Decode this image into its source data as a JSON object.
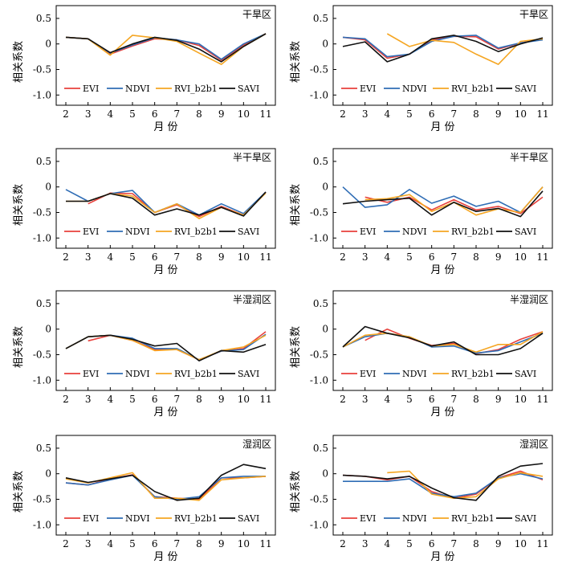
{
  "figure": {
    "legend_entries": [
      "EVI",
      "NDVI",
      "RVI_b2b1",
      "SAVI"
    ],
    "colors": {
      "EVI": "#e8413c",
      "NDVI": "#2f6db5",
      "RVI_b2b1": "#f5a623",
      "SAVI": "#111111"
    }
  },
  "chart_data": [
    {
      "type": "line",
      "title": "干旱区",
      "xlabel": "月 份",
      "ylabel": "相关系数",
      "x": [
        2,
        3,
        4,
        5,
        6,
        7,
        8,
        9,
        10,
        11
      ],
      "xticks": [
        2,
        3,
        4,
        5,
        6,
        7,
        8,
        9,
        10,
        11
      ],
      "yticks": [
        0.5,
        0,
        -0.5,
        -1.0
      ],
      "ytick_labels": [
        "0.5",
        "0",
        "-0.5",
        "-1.0"
      ],
      "ylim": [
        -1.2,
        0.75
      ],
      "legend": "bottom",
      "series": [
        {
          "name": "EVI",
          "x": [
            2,
            3,
            4,
            5,
            6,
            7,
            8,
            9,
            10,
            11
          ],
          "values": [
            0.13,
            0.1,
            -0.2,
            -0.04,
            0.1,
            0.08,
            -0.03,
            -0.32,
            -0.02,
            0.2
          ]
        },
        {
          "name": "NDVI",
          "x": [
            2,
            3,
            4,
            5,
            6,
            7,
            8,
            9,
            10,
            11
          ],
          "values": [
            0.13,
            0.1,
            -0.18,
            -0.02,
            0.12,
            0.08,
            0.0,
            -0.3,
            0.0,
            0.2
          ]
        },
        {
          "name": "RVI_b2b1",
          "x": [
            2,
            3,
            4,
            5,
            6,
            7,
            8,
            9,
            10,
            11
          ],
          "values": [
            0.13,
            0.1,
            -0.22,
            0.17,
            0.12,
            0.05,
            -0.18,
            -0.4,
            -0.05,
            0.2
          ]
        },
        {
          "name": "SAVI",
          "x": [
            2,
            3,
            4,
            5,
            6,
            7,
            8,
            9,
            10,
            11
          ],
          "values": [
            0.13,
            0.1,
            -0.17,
            0.0,
            0.13,
            0.07,
            -0.1,
            -0.35,
            -0.05,
            0.2
          ]
        }
      ]
    },
    {
      "type": "line",
      "title": "干旱区",
      "xlabel": "月 份",
      "ylabel": "相关系数",
      "x": [
        2,
        3,
        4,
        5,
        6,
        7,
        8,
        9,
        10,
        11
      ],
      "xticks": [
        2,
        3,
        4,
        5,
        6,
        7,
        8,
        9,
        10,
        11
      ],
      "yticks": [
        0.5,
        0,
        -0.5,
        -1.0
      ],
      "ytick_labels": [
        "0.5",
        "0",
        "-0.5",
        "-1.0"
      ],
      "ylim": [
        -1.2,
        0.75
      ],
      "legend": "bottom",
      "series": [
        {
          "name": "EVI",
          "x": [
            2,
            3,
            4,
            5,
            6,
            7,
            8,
            9,
            10,
            11
          ],
          "values": [
            0.13,
            0.08,
            -0.28,
            -0.2,
            0.08,
            0.15,
            0.14,
            -0.1,
            0.02,
            0.1
          ]
        },
        {
          "name": "NDVI",
          "x": [
            2,
            3,
            4,
            5,
            6,
            7,
            8,
            9,
            10,
            11
          ],
          "values": [
            0.13,
            0.1,
            -0.25,
            -0.2,
            0.05,
            0.15,
            0.17,
            -0.08,
            0.02,
            0.08
          ]
        },
        {
          "name": "RVI_b2b1",
          "x": [
            4,
            5,
            6,
            7,
            8,
            9,
            10,
            11
          ],
          "values": [
            0.2,
            -0.05,
            0.07,
            0.03,
            -0.2,
            -0.4,
            0.05,
            0.1
          ]
        },
        {
          "name": "SAVI",
          "x": [
            2,
            3,
            4,
            5,
            6,
            7,
            8,
            9,
            10,
            11
          ],
          "values": [
            -0.05,
            0.04,
            -0.35,
            -0.2,
            0.1,
            0.17,
            0.05,
            -0.15,
            0.0,
            0.12
          ]
        }
      ]
    },
    {
      "type": "line",
      "title": "半干旱区",
      "xlabel": "月 份",
      "ylabel": "相关系数",
      "x": [
        2,
        3,
        4,
        5,
        6,
        7,
        8,
        9,
        10,
        11
      ],
      "xticks": [
        2,
        3,
        4,
        5,
        6,
        7,
        8,
        9,
        10,
        11
      ],
      "yticks": [
        0.5,
        0,
        -0.5,
        -1.0
      ],
      "ytick_labels": [
        "0.5",
        "0",
        "-0.5",
        "-1.0"
      ],
      "ylim": [
        -1.2,
        0.75
      ],
      "legend": "bottom",
      "series": [
        {
          "name": "EVI",
          "x": [
            3,
            4,
            5,
            6,
            7,
            8,
            9,
            10,
            11
          ],
          "values": [
            -0.33,
            -0.12,
            -0.13,
            -0.5,
            -0.35,
            -0.58,
            -0.38,
            -0.55,
            -0.1
          ]
        },
        {
          "name": "NDVI",
          "x": [
            2,
            3,
            4,
            5,
            6,
            7,
            8,
            9,
            10,
            11
          ],
          "values": [
            -0.05,
            -0.28,
            -0.13,
            -0.07,
            -0.5,
            -0.33,
            -0.55,
            -0.33,
            -0.52,
            -0.1
          ]
        },
        {
          "name": "RVI_b2b1",
          "x": [
            2,
            3,
            4,
            5,
            6,
            7,
            8,
            9,
            10,
            11
          ],
          "values": [
            -0.28,
            -0.28,
            -0.13,
            -0.18,
            -0.5,
            -0.33,
            -0.62,
            -0.4,
            -0.55,
            -0.12
          ]
        },
        {
          "name": "SAVI",
          "x": [
            2,
            3,
            4,
            5,
            6,
            7,
            8,
            9,
            10,
            11
          ],
          "values": [
            -0.28,
            -0.28,
            -0.13,
            -0.22,
            -0.55,
            -0.43,
            -0.55,
            -0.4,
            -0.57,
            -0.1
          ]
        }
      ]
    },
    {
      "type": "line",
      "title": "半干旱区",
      "xlabel": "月 份",
      "ylabel": "相关系数",
      "x": [
        2,
        3,
        4,
        5,
        6,
        7,
        8,
        9,
        10,
        11
      ],
      "xticks": [
        2,
        3,
        4,
        5,
        6,
        7,
        8,
        9,
        10,
        11
      ],
      "yticks": [
        0.5,
        0,
        -0.5,
        -1.0
      ],
      "ytick_labels": [
        "0.5",
        "0",
        "-0.5",
        "-1.0"
      ],
      "ylim": [
        -1.2,
        0.75
      ],
      "legend": "bottom",
      "series": [
        {
          "name": "EVI",
          "x": [
            3,
            4,
            5,
            6,
            7,
            8,
            9,
            10,
            11
          ],
          "values": [
            -0.2,
            -0.3,
            -0.2,
            -0.45,
            -0.25,
            -0.45,
            -0.38,
            -0.52,
            -0.2
          ]
        },
        {
          "name": "NDVI",
          "x": [
            2,
            3,
            4,
            5,
            6,
            7,
            8,
            9,
            10,
            11
          ],
          "values": [
            0.0,
            -0.4,
            -0.35,
            -0.05,
            -0.32,
            -0.18,
            -0.38,
            -0.28,
            -0.5,
            0.0
          ]
        },
        {
          "name": "RVI_b2b1",
          "x": [
            3,
            4,
            5,
            6,
            7,
            8,
            9,
            10,
            11
          ],
          "values": [
            -0.25,
            -0.23,
            -0.15,
            -0.48,
            -0.3,
            -0.55,
            -0.43,
            -0.5,
            0.0
          ]
        },
        {
          "name": "SAVI",
          "x": [
            2,
            3,
            4,
            5,
            6,
            7,
            8,
            9,
            10,
            11
          ],
          "values": [
            -0.33,
            -0.28,
            -0.25,
            -0.22,
            -0.55,
            -0.3,
            -0.48,
            -0.42,
            -0.58,
            -0.08
          ]
        }
      ]
    },
    {
      "type": "line",
      "title": "半湿润区",
      "xlabel": "月 份",
      "ylabel": "相关系数",
      "x": [
        2,
        3,
        4,
        5,
        6,
        7,
        8,
        9,
        10,
        11
      ],
      "xticks": [
        2,
        3,
        4,
        5,
        6,
        7,
        8,
        9,
        10,
        11
      ],
      "yticks": [
        0.5,
        0,
        -0.5,
        -1.0
      ],
      "ytick_labels": [
        "0.5",
        "0",
        "-0.5",
        "-1.0"
      ],
      "ylim": [
        -1.2,
        0.75
      ],
      "legend": "bottom",
      "series": [
        {
          "name": "EVI",
          "x": [
            3,
            4,
            5,
            6,
            7,
            8,
            9,
            10,
            11
          ],
          "values": [
            -0.23,
            -0.12,
            -0.22,
            -0.4,
            -0.4,
            -0.6,
            -0.43,
            -0.38,
            -0.05
          ]
        },
        {
          "name": "NDVI",
          "x": [
            2,
            3,
            4,
            5,
            6,
            7,
            8,
            9,
            10,
            11
          ],
          "values": [
            -0.38,
            -0.15,
            -0.12,
            -0.18,
            -0.38,
            -0.38,
            -0.6,
            -0.43,
            -0.4,
            -0.1
          ]
        },
        {
          "name": "RVI_b2b1",
          "x": [
            2,
            3,
            4,
            5,
            6,
            7,
            8,
            9,
            10,
            11
          ],
          "values": [
            -0.38,
            -0.15,
            -0.12,
            -0.22,
            -0.42,
            -0.4,
            -0.6,
            -0.42,
            -0.35,
            -0.12
          ]
        },
        {
          "name": "SAVI",
          "x": [
            2,
            3,
            4,
            5,
            6,
            7,
            8,
            9,
            10,
            11
          ],
          "values": [
            -0.38,
            -0.15,
            -0.12,
            -0.2,
            -0.33,
            -0.28,
            -0.62,
            -0.42,
            -0.45,
            -0.3
          ]
        }
      ]
    },
    {
      "type": "line",
      "title": "半湿润区",
      "xlabel": "月 份",
      "ylabel": "相关系数",
      "x": [
        2,
        3,
        4,
        5,
        6,
        7,
        8,
        9,
        10,
        11
      ],
      "xticks": [
        2,
        3,
        4,
        5,
        6,
        7,
        8,
        9,
        10,
        11
      ],
      "yticks": [
        0.5,
        0,
        -0.5,
        -1.0
      ],
      "ytick_labels": [
        "0.5",
        "0",
        "-0.5",
        "-1.0"
      ],
      "ylim": [
        -1.2,
        0.75
      ],
      "legend": "bottom",
      "series": [
        {
          "name": "EVI",
          "x": [
            3,
            4,
            5,
            6,
            7,
            8,
            9,
            10,
            11
          ],
          "values": [
            -0.22,
            0.0,
            -0.18,
            -0.32,
            -0.28,
            -0.48,
            -0.4,
            -0.2,
            -0.05
          ]
        },
        {
          "name": "NDVI",
          "x": [
            2,
            3,
            4,
            5,
            6,
            7,
            8,
            9,
            10,
            11
          ],
          "values": [
            -0.35,
            -0.15,
            -0.08,
            -0.15,
            -0.35,
            -0.33,
            -0.47,
            -0.42,
            -0.25,
            -0.08
          ]
        },
        {
          "name": "RVI_b2b1",
          "x": [
            2,
            3,
            4,
            5,
            6,
            7,
            8,
            9,
            10,
            11
          ],
          "values": [
            -0.35,
            -0.12,
            -0.08,
            -0.15,
            -0.33,
            -0.3,
            -0.45,
            -0.3,
            -0.3,
            -0.05
          ]
        },
        {
          "name": "SAVI",
          "x": [
            2,
            3,
            4,
            5,
            6,
            7,
            8,
            9,
            10,
            11
          ],
          "values": [
            -0.35,
            0.05,
            -0.08,
            -0.17,
            -0.33,
            -0.25,
            -0.5,
            -0.5,
            -0.38,
            -0.08
          ]
        }
      ]
    },
    {
      "type": "line",
      "title": "湿润区",
      "xlabel": "月 份",
      "ylabel": "相关系数",
      "x": [
        2,
        3,
        4,
        5,
        6,
        7,
        8,
        9,
        10,
        11
      ],
      "xticks": [
        2,
        3,
        4,
        5,
        6,
        7,
        8,
        9,
        10,
        11
      ],
      "yticks": [
        0.5,
        0,
        -0.5,
        -1.0
      ],
      "ytick_labels": [
        "0.5",
        "0",
        "-0.5",
        "-1.0"
      ],
      "ylim": [
        -1.2,
        0.75
      ],
      "legend": "bottom",
      "series": [
        {
          "name": "EVI",
          "x": [
            2,
            3,
            4,
            5,
            6,
            7,
            8,
            9,
            10,
            11
          ],
          "values": [
            -0.18,
            -0.22,
            -0.1,
            -0.02,
            -0.45,
            -0.48,
            -0.5,
            -0.08,
            -0.08,
            -0.05
          ]
        },
        {
          "name": "NDVI",
          "x": [
            2,
            3,
            4,
            5,
            6,
            7,
            8,
            9,
            10,
            11
          ],
          "values": [
            -0.18,
            -0.22,
            -0.12,
            -0.03,
            -0.45,
            -0.5,
            -0.45,
            -0.08,
            -0.05,
            -0.05
          ]
        },
        {
          "name": "RVI_b2b1",
          "x": [
            2,
            3,
            4,
            5,
            6,
            7,
            8,
            9,
            10,
            11
          ],
          "values": [
            -0.1,
            -0.18,
            -0.08,
            0.02,
            -0.48,
            -0.48,
            -0.52,
            -0.12,
            -0.08,
            -0.05
          ]
        },
        {
          "name": "SAVI",
          "x": [
            2,
            3,
            4,
            5,
            6,
            7,
            8,
            9,
            10,
            11
          ],
          "values": [
            -0.08,
            -0.17,
            -0.1,
            -0.03,
            -0.35,
            -0.52,
            -0.48,
            -0.03,
            0.18,
            0.1
          ]
        }
      ]
    },
    {
      "type": "line",
      "title": "湿润区",
      "xlabel": "月 份",
      "ylabel": "相关系数",
      "x": [
        2,
        3,
        4,
        5,
        6,
        7,
        8,
        9,
        10,
        11
      ],
      "xticks": [
        2,
        3,
        4,
        5,
        6,
        7,
        8,
        9,
        10,
        11
      ],
      "yticks": [
        0.5,
        0,
        -0.5,
        -1.0
      ],
      "ytick_labels": [
        "0.5",
        "0",
        "-0.5",
        "-1.0"
      ],
      "ylim": [
        -1.2,
        0.75
      ],
      "legend": "bottom",
      "series": [
        {
          "name": "EVI",
          "x": [
            2,
            3,
            4,
            5,
            6,
            7,
            8,
            9,
            10,
            11
          ],
          "values": [
            -0.03,
            -0.05,
            -0.12,
            -0.05,
            -0.35,
            -0.48,
            -0.4,
            -0.08,
            0.05,
            -0.12
          ]
        },
        {
          "name": "NDVI",
          "x": [
            2,
            3,
            4,
            5,
            6,
            7,
            8,
            9,
            10,
            11
          ],
          "values": [
            -0.15,
            -0.15,
            -0.15,
            -0.1,
            -0.38,
            -0.45,
            -0.38,
            -0.08,
            0.0,
            -0.1
          ]
        },
        {
          "name": "RVI_b2b1",
          "x": [
            4,
            5,
            6,
            7,
            8,
            9,
            10,
            11
          ],
          "values": [
            0.02,
            0.05,
            -0.4,
            -0.48,
            -0.45,
            -0.1,
            0.02,
            -0.05
          ]
        },
        {
          "name": "SAVI",
          "x": [
            2,
            3,
            4,
            5,
            6,
            7,
            8,
            9,
            10,
            11
          ],
          "values": [
            -0.03,
            -0.05,
            -0.1,
            -0.05,
            -0.28,
            -0.47,
            -0.52,
            -0.05,
            0.15,
            0.2
          ]
        }
      ]
    }
  ]
}
